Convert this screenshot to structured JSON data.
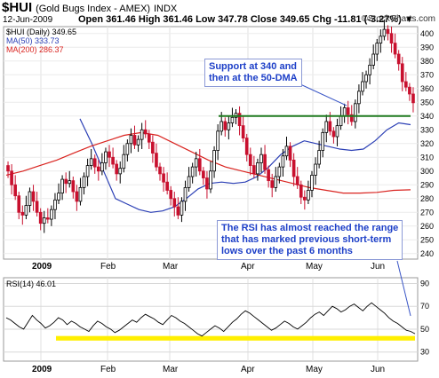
{
  "header": {
    "symbol": "$HUI",
    "name": "(Gold Bugs Index - AMEX)",
    "exchange": "INDX",
    "date": "12-Jun-2009",
    "ohlc": "Open 361.46  High 361.46  Low 347.78  Close 349.65  Chg -11.81 (-3.27%) ▼",
    "credit": "©StockCharts.com"
  },
  "legend": {
    "price": "$HUI (Daily) 349.65",
    "ma50": "MA(50) 333.73",
    "ma200": "MA(200) 286.37",
    "rsi": "RSI(14) 46.01"
  },
  "annotations": {
    "support": [
      "Support at 340 and",
      "then at the 50-DMA"
    ],
    "rsi_note": [
      "The RSI has almost reached the range",
      "that has marked previous short-term",
      "lows over the past 6 months"
    ]
  },
  "colors": {
    "up_candle": "#000000",
    "down_candle": "#c8102e",
    "ma50": "#2b3fb5",
    "ma200": "#d9231f",
    "support_line": "#1f7a1f",
    "rsi_band": "#ffef00",
    "annotation_text": "#1e40c8"
  },
  "chart_data": [
    {
      "type": "candlestick",
      "title": "$HUI (Daily)",
      "x_tick_labels": [
        "2009",
        "Feb",
        "Mar",
        "Apr",
        "May",
        "Jun"
      ],
      "y_tick_labels": [
        240,
        250,
        260,
        270,
        280,
        290,
        300,
        310,
        320,
        330,
        340,
        350,
        360,
        370,
        380,
        390,
        400
      ],
      "ylim": [
        236,
        405
      ],
      "grid": true,
      "series": [
        {
          "name": "$HUI (Daily)",
          "values": [
            300,
            290,
            282,
            270,
            268,
            275,
            285,
            278,
            270,
            262,
            266,
            265,
            272,
            279,
            284,
            294,
            291,
            293,
            285,
            278,
            288,
            296,
            304,
            309,
            303,
            300,
            306,
            314,
            310,
            305,
            298,
            302,
            312,
            320,
            326,
            319,
            323,
            330,
            327,
            321,
            313,
            303,
            298,
            292,
            286,
            280,
            274,
            268,
            278,
            288,
            296,
            303,
            309,
            300,
            295,
            287,
            300,
            315,
            329,
            336,
            330,
            335,
            339,
            342,
            333,
            324,
            312,
            304,
            298,
            306,
            312,
            301,
            293,
            288,
            296,
            303,
            311,
            318,
            308,
            296,
            290,
            281,
            279,
            286,
            297,
            305,
            315,
            328,
            336,
            329,
            325,
            333,
            340,
            346,
            341,
            336,
            349,
            358,
            365,
            370,
            377,
            385,
            393,
            398,
            403,
            400,
            393,
            385,
            378,
            365,
            361,
            356,
            349.65
          ]
        },
        {
          "name": "MA(50)",
          "values": [
            338,
            320,
            300,
            280,
            276,
            272,
            270,
            271,
            274,
            280,
            287,
            291,
            292,
            291,
            292,
            296,
            303,
            312,
            318,
            322,
            320,
            318,
            316,
            315,
            316,
            322,
            330,
            335,
            333.73
          ]
        },
        {
          "name": "MA(200)",
          "values": [
            297,
            300,
            304,
            308,
            313,
            318,
            322,
            326,
            328,
            326,
            320,
            314,
            308,
            303,
            300,
            297,
            294,
            291,
            288,
            286,
            284,
            284,
            284.5,
            286,
            286.37
          ]
        }
      ],
      "support_level": 340
    },
    {
      "type": "line",
      "title": "RSI(14)",
      "x_tick_labels": [
        "2009",
        "Feb",
        "Mar",
        "Apr",
        "May",
        "Jun"
      ],
      "y_tick_labels": [
        30,
        50,
        70,
        90
      ],
      "ylim": [
        22,
        95
      ],
      "series": [
        {
          "name": "RSI(14)",
          "values": [
            60,
            58,
            55,
            52,
            50,
            56,
            62,
            58,
            55,
            51,
            53,
            56,
            60,
            58,
            54,
            57,
            55,
            52,
            50,
            48,
            53,
            57,
            55,
            52,
            50,
            47,
            49,
            52,
            55,
            58,
            56,
            60,
            63,
            61,
            59,
            56,
            54,
            58,
            62,
            60,
            57,
            55,
            52,
            49,
            46,
            44,
            47,
            50,
            53,
            51,
            48,
            52,
            56,
            59,
            63,
            66,
            64,
            61,
            58,
            55,
            52,
            49,
            51,
            54,
            57,
            55,
            52,
            50,
            53,
            56,
            60,
            63,
            65,
            62,
            66,
            70,
            68,
            65,
            67,
            70,
            72,
            69,
            66,
            70,
            73,
            70,
            67,
            64,
            60,
            57,
            55,
            52,
            49,
            48,
            46.01
          ]
        }
      ],
      "highlight_band": [
        40,
        44
      ]
    }
  ]
}
